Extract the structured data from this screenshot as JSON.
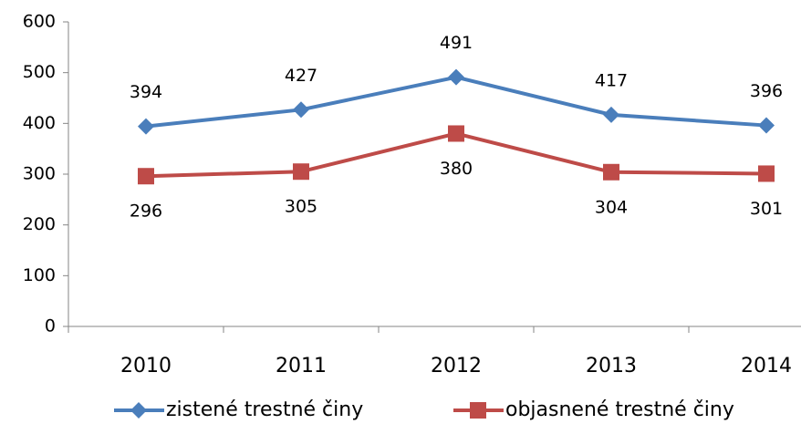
{
  "chart_data": {
    "type": "line",
    "categories": [
      "2010",
      "2011",
      "2012",
      "2013",
      "2014"
    ],
    "series": [
      {
        "name": "zistené trestné činy",
        "color": "#4a7ebb",
        "marker": "diamond",
        "label_position": "above",
        "values": [
          394,
          427,
          491,
          417,
          396
        ]
      },
      {
        "name": "objasnené trestné činy",
        "color": "#be4b48",
        "marker": "square",
        "label_position": "below",
        "values": [
          296,
          305,
          380,
          304,
          301
        ]
      }
    ],
    "ylim": [
      0,
      600
    ],
    "yticks": [
      0,
      100,
      200,
      300,
      400,
      500,
      600
    ],
    "grid": false,
    "legend": "bottom"
  }
}
